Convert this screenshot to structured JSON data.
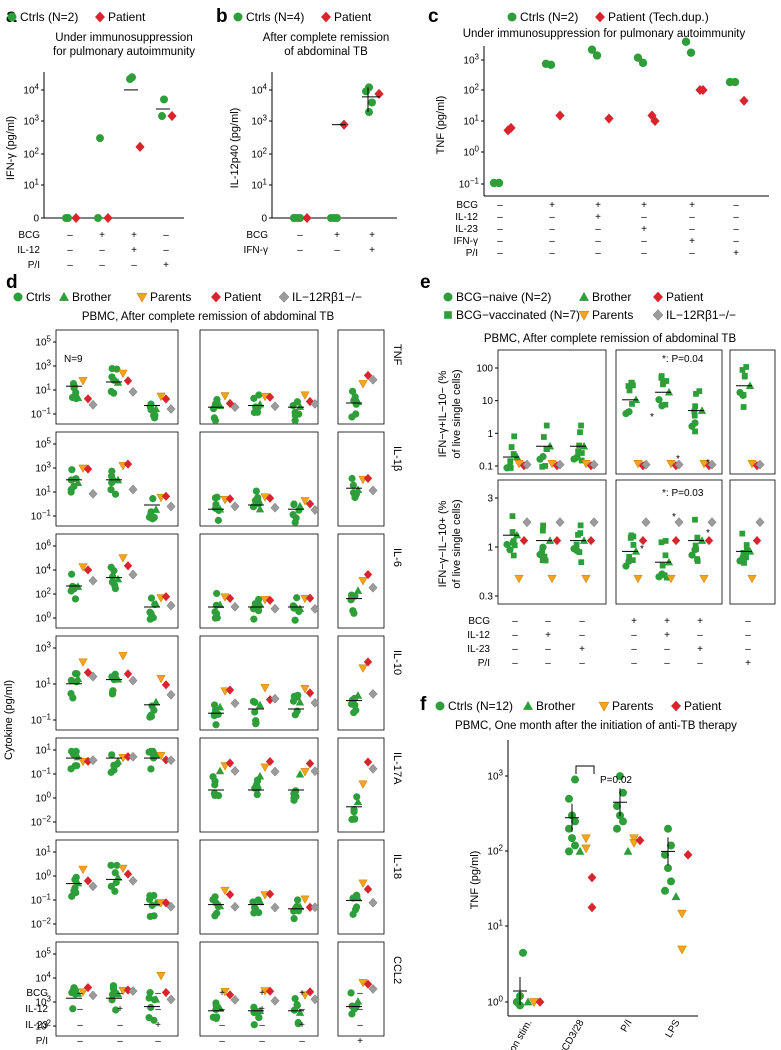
{
  "colors": {
    "ctrl": "#2e9e3a",
    "brother": "#2e9e3a",
    "parents": "#f4a31c",
    "patient": "#d8242d",
    "il12rb1": "#9b9b9b"
  },
  "chart_data": [
    {
      "id": "a",
      "type": "scatter",
      "panel_label": "a",
      "legend": [
        "Ctrls (N=2)",
        "Patient"
      ],
      "subtitle": [
        "Under immunosuppression",
        "for pulmonary autoimmunity"
      ],
      "ylabel": "IFN-γ (pg/ml)",
      "yscale": "log",
      "ylim": [
        0,
        5
      ],
      "yticks": [
        "0",
        "10^1",
        "10^2",
        "10^3",
        "10^4"
      ],
      "conditions": [
        {
          "name": "BCG",
          "vals": [
            "–",
            "+",
            "+",
            "–"
          ]
        },
        {
          "name": "IL-12",
          "vals": [
            "–",
            "–",
            "+",
            "–"
          ]
        },
        {
          "name": "P/I",
          "vals": [
            "–",
            "–",
            "–",
            "+"
          ]
        }
      ],
      "series": [
        {
          "name": "Ctrls",
          "points": [
            [
              1,
              0
            ],
            [
              1,
              0
            ],
            [
              2,
              0
            ],
            [
              2,
              300
            ],
            [
              3,
              22000
            ],
            [
              3,
              25000
            ],
            [
              4,
              1500
            ],
            [
              4,
              5000
            ]
          ]
        },
        {
          "name": "Patient",
          "points": [
            [
              1,
              0
            ],
            [
              2,
              0
            ],
            [
              3,
              160
            ],
            [
              4,
              1500
            ]
          ]
        }
      ]
    },
    {
      "id": "b",
      "type": "scatter",
      "panel_label": "b",
      "legend": [
        "Ctrls (N=4)",
        "Patient"
      ],
      "subtitle": [
        "After complete remission",
        "of abdominal TB"
      ],
      "ylabel": "IL-12p40 (pg/ml)",
      "yscale": "log",
      "ylim": [
        0,
        5
      ],
      "yticks": [
        "0",
        "10^1",
        "10^2",
        "10^3",
        "10^4"
      ],
      "conditions": [
        {
          "name": "BCG",
          "vals": [
            "–",
            "+",
            "+"
          ]
        },
        {
          "name": "IFN-γ",
          "vals": [
            "–",
            "–",
            "+"
          ]
        }
      ],
      "series": [
        {
          "name": "Ctrls",
          "points": [
            [
              1,
              0
            ],
            [
              1,
              0
            ],
            [
              1,
              0
            ],
            [
              1,
              0
            ],
            [
              2,
              0
            ],
            [
              2,
              0
            ],
            [
              2,
              0
            ],
            [
              3,
              2000
            ],
            [
              3,
              4000
            ],
            [
              3,
              9000
            ],
            [
              3,
              12000
            ]
          ]
        },
        {
          "name": "Patient",
          "points": [
            [
              1,
              0
            ],
            [
              2,
              800
            ],
            [
              3,
              7500
            ]
          ]
        }
      ]
    },
    {
      "id": "c",
      "type": "scatter",
      "panel_label": "c",
      "legend": [
        "Ctrls (N=2)",
        "Patient (Tech.dup.)"
      ],
      "subtitle": [
        "Under immunosuppression for pulmonary autoimmunity"
      ],
      "ylabel": "TNF (pg/ml)",
      "yscale": "log",
      "ylim": [
        -1.3,
        3.6
      ],
      "yticks": [
        "10^-1",
        "10^0",
        "10^1",
        "10^2",
        "10^3"
      ],
      "conditions": [
        {
          "name": "BCG",
          "vals": [
            "–",
            "+",
            "+",
            "+",
            "+",
            "–"
          ]
        },
        {
          "name": "IL-12",
          "vals": [
            "–",
            "–",
            "+",
            "–",
            "–",
            "–"
          ]
        },
        {
          "name": "IL-23",
          "vals": [
            "–",
            "–",
            "–",
            "+",
            "–",
            "–"
          ]
        },
        {
          "name": "IFN-γ",
          "vals": [
            "–",
            "–",
            "–",
            "–",
            "+",
            "–"
          ]
        },
        {
          "name": "P/I",
          "vals": [
            "–",
            "–",
            "–",
            "–",
            "–",
            "+"
          ]
        }
      ],
      "series": [
        {
          "name": "Ctrls",
          "points": [
            [
              1,
              0.1
            ],
            [
              1,
              0.1
            ],
            [
              2,
              700
            ],
            [
              2,
              650
            ],
            [
              3,
              2000
            ],
            [
              3,
              1300
            ],
            [
              4,
              1100
            ],
            [
              4,
              750
            ],
            [
              5,
              3600
            ],
            [
              5,
              1600
            ],
            [
              6,
              180
            ],
            [
              6,
              180
            ]
          ]
        },
        {
          "name": "Patient",
          "points": [
            [
              1,
              5
            ],
            [
              1,
              6
            ],
            [
              2,
              15
            ],
            [
              3,
              12
            ],
            [
              4,
              15
            ],
            [
              4,
              10
            ],
            [
              5,
              100
            ],
            [
              5,
              100
            ],
            [
              6,
              45
            ]
          ]
        }
      ]
    },
    {
      "id": "d",
      "type": "scatter",
      "panel_label": "d",
      "legend": [
        "Ctrls",
        "Brother",
        "Parents",
        "Patient",
        "IL−12Rβ1−/−"
      ],
      "subtitle": "PBMC, After complete remission of abdominal TB",
      "ylabel": "Cytokine (pg/ml)",
      "annotation": "N=9",
      "rows": [
        {
          "name": "TNF",
          "yticks": [
            "10^-1",
            "10^1",
            "10^3",
            "10^5"
          ]
        },
        {
          "name": "IL-1β",
          "yticks": [
            "10^-1",
            "10^1",
            "10^3",
            "10^5"
          ]
        },
        {
          "name": "IL-6",
          "yticks": [
            "10^0",
            "10^2",
            "10^4",
            "10^6"
          ]
        },
        {
          "name": "IL-10",
          "yticks": [
            "10^-1",
            "10^1",
            "10^3"
          ]
        },
        {
          "name": "IL-17A",
          "yticks": [
            "10^-2",
            "10^0",
            "10^-1",
            "10^1"
          ]
        },
        {
          "name": "IL-18",
          "yticks": [
            "10^-2",
            "10^-1",
            "10^0",
            "10^1"
          ]
        },
        {
          "name": "CCL2",
          "yticks": [
            "10^2",
            "10^3",
            "10^4",
            "10^5"
          ]
        }
      ],
      "conditions": [
        {
          "name": "BCG",
          "vals": [
            "–",
            "–",
            "–",
            "+",
            "+",
            "+",
            "–"
          ]
        },
        {
          "name": "IL-12",
          "vals": [
            "–",
            "+",
            "–",
            "–",
            "+",
            "–",
            "–"
          ]
        },
        {
          "name": "IL-23",
          "vals": [
            "–",
            "–",
            "+",
            "–",
            "–",
            "+",
            "–"
          ]
        },
        {
          "name": "P/I",
          "vals": [
            "–",
            "–",
            "–",
            "–",
            "–",
            "–",
            "+"
          ]
        }
      ]
    },
    {
      "id": "e",
      "type": "scatter",
      "panel_label": "e",
      "legend": [
        "BCG−naive (N=2)",
        "Brother",
        "Patient",
        "BCG−vaccinated (N=7)",
        "Parents",
        "IL−12Rβ1−/−"
      ],
      "subtitle": "PBMC, After complete remission of abdominal TB",
      "rows": [
        {
          "ylabel": "IFN−γ+IL−10− (% of live single cells)",
          "yticks": [
            "0.1",
            "1",
            "10",
            "100"
          ],
          "annotation": "*: P=0.04"
        },
        {
          "ylabel": "IFN−γ−IL−10+ (% of live single cells)",
          "yticks": [
            "0.3",
            "1",
            "3"
          ],
          "annotation": "*: P=0.03"
        }
      ],
      "conditions": [
        {
          "name": "BCG",
          "vals": [
            "–",
            "–",
            "–",
            "+",
            "+",
            "+",
            "–"
          ]
        },
        {
          "name": "IL-12",
          "vals": [
            "–",
            "+",
            "–",
            "–",
            "+",
            "–",
            "–"
          ]
        },
        {
          "name": "IL-23",
          "vals": [
            "–",
            "–",
            "+",
            "–",
            "–",
            "+",
            "–"
          ]
        },
        {
          "name": "P/I",
          "vals": [
            "–",
            "–",
            "–",
            "–",
            "–",
            "–",
            "+"
          ]
        }
      ]
    },
    {
      "id": "f",
      "type": "scatter",
      "panel_label": "f",
      "legend": [
        "Ctrls (N=12)",
        "Brother",
        "Parents",
        "Patient"
      ],
      "subtitle": "PBMC, One month after the initiation of anti-TB therapy",
      "ylabel": "TNF (pg/ml)",
      "yscale": "log",
      "yticks": [
        "10^0",
        "10^1",
        "10^2",
        "10^3"
      ],
      "categories": [
        "Non stim.",
        "αCD3/28",
        "P/I",
        "LPS"
      ],
      "annotation": "P=0.02",
      "series": [
        {
          "name": "Ctrls",
          "points": [
            [
              1,
              1
            ],
            [
              1,
              1.2
            ],
            [
              1,
              4.5
            ],
            [
              1,
              1
            ],
            [
              1,
              0.9
            ],
            [
              2,
              900
            ],
            [
              2,
              500
            ],
            [
              2,
              300
            ],
            [
              2,
              250
            ],
            [
              2,
              200
            ],
            [
              2,
              150
            ],
            [
              2,
              120
            ],
            [
              2,
              100
            ],
            [
              3,
              1000
            ],
            [
              3,
              600
            ],
            [
              3,
              400
            ],
            [
              3,
              300
            ],
            [
              3,
              250
            ],
            [
              3,
              200
            ],
            [
              4,
              200
            ],
            [
              4,
              120
            ],
            [
              4,
              90
            ],
            [
              4,
              60
            ],
            [
              4,
              40
            ],
            [
              4,
              30
            ]
          ]
        },
        {
          "name": "Brother",
          "points": [
            [
              1,
              1
            ],
            [
              2,
              100
            ],
            [
              3,
              100
            ],
            [
              4,
              25
            ]
          ]
        },
        {
          "name": "Parents",
          "points": [
            [
              1,
              1
            ],
            [
              1,
              1
            ],
            [
              2,
              150
            ],
            [
              2,
              110
            ],
            [
              3,
              150
            ],
            [
              3,
              130
            ],
            [
              4,
              15
            ],
            [
              4,
              5
            ]
          ]
        },
        {
          "name": "Patient",
          "points": [
            [
              1,
              1
            ],
            [
              2,
              45
            ],
            [
              2,
              18
            ],
            [
              3,
              140
            ],
            [
              4,
              90
            ]
          ]
        }
      ]
    }
  ]
}
